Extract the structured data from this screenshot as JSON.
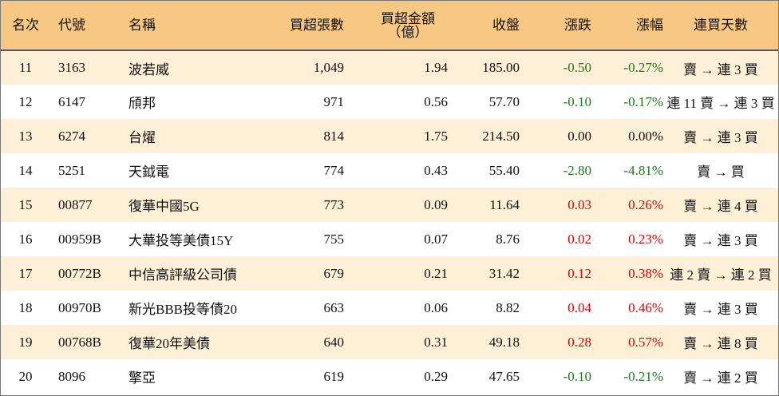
{
  "headers": {
    "rank": "名次",
    "code": "代號",
    "name": "名稱",
    "net_buy_lots": "買超張數",
    "net_buy_amount_line1": "買超金額",
    "net_buy_amount_line2": "（億）",
    "close": "收盤",
    "change": "漲跌",
    "change_pct": "漲幅",
    "streak": "連買天數"
  },
  "colors": {
    "header_bg": "#f7c883",
    "odd_row_bg": "#fdf0d6",
    "even_row_bg": "#ffffff",
    "down": "#1a7a1a",
    "up": "#e00000"
  },
  "rows": [
    {
      "rank": "11",
      "code": "3163",
      "name": "波若威",
      "lots": "1,049",
      "amount": "1.94",
      "close": "185.00",
      "change": "-0.50",
      "pct": "-0.27%",
      "streak": "賣 → 連 3 買",
      "dir": "down"
    },
    {
      "rank": "12",
      "code": "6147",
      "name": "頎邦",
      "lots": "971",
      "amount": "0.56",
      "close": "57.70",
      "change": "-0.10",
      "pct": "-0.17%",
      "streak": "連 11 賣 → 連 3 買",
      "dir": "down"
    },
    {
      "rank": "13",
      "code": "6274",
      "name": "台燿",
      "lots": "814",
      "amount": "1.75",
      "close": "214.50",
      "change": "0.00",
      "pct": "0.00%",
      "streak": "賣 → 連 3 買",
      "dir": "flat"
    },
    {
      "rank": "14",
      "code": "5251",
      "name": "天鉞電",
      "lots": "774",
      "amount": "0.43",
      "close": "55.40",
      "change": "-2.80",
      "pct": "-4.81%",
      "streak": "賣 → 買",
      "dir": "down"
    },
    {
      "rank": "15",
      "code": "00877",
      "name": "復華中國5G",
      "lots": "773",
      "amount": "0.09",
      "close": "11.64",
      "change": "0.03",
      "pct": "0.26%",
      "streak": "賣 → 連 4 買",
      "dir": "up"
    },
    {
      "rank": "16",
      "code": "00959B",
      "name": "大華投等美債15Y",
      "lots": "755",
      "amount": "0.07",
      "close": "8.76",
      "change": "0.02",
      "pct": "0.23%",
      "streak": "賣 → 連 3 買",
      "dir": "up"
    },
    {
      "rank": "17",
      "code": "00772B",
      "name": "中信高評級公司債",
      "lots": "679",
      "amount": "0.21",
      "close": "31.42",
      "change": "0.12",
      "pct": "0.38%",
      "streak": "連 2 賣 → 連 2 買",
      "dir": "up"
    },
    {
      "rank": "18",
      "code": "00970B",
      "name": "新光BBB投等債20",
      "lots": "663",
      "amount": "0.06",
      "close": "8.82",
      "change": "0.04",
      "pct": "0.46%",
      "streak": "賣 → 連 3 買",
      "dir": "up"
    },
    {
      "rank": "19",
      "code": "00768B",
      "name": "復華20年美債",
      "lots": "640",
      "amount": "0.31",
      "close": "49.18",
      "change": "0.28",
      "pct": "0.57%",
      "streak": "賣 → 連 8 買",
      "dir": "up"
    },
    {
      "rank": "20",
      "code": "8096",
      "name": "擎亞",
      "lots": "619",
      "amount": "0.29",
      "close": "47.65",
      "change": "-0.10",
      "pct": "-0.21%",
      "streak": "賣 → 連 2 買",
      "dir": "down"
    }
  ]
}
